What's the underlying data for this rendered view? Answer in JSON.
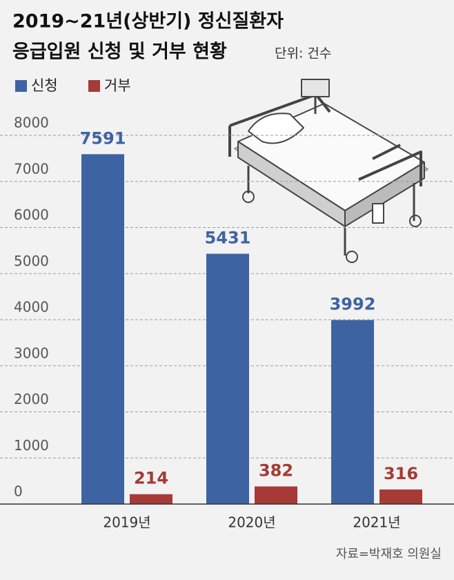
{
  "chart_data": {
    "type": "bar",
    "title": [
      "2019~21년(상반기) 정신질환자",
      "응급입원 신청 및 거부 현황"
    ],
    "subtitle": "단위: 건수",
    "categories": [
      "2019년",
      "2020년",
      "2021년"
    ],
    "series": [
      {
        "name": "신청",
        "color": "#3e63a3",
        "values": [
          7591,
          5431,
          3992
        ]
      },
      {
        "name": "거부",
        "color": "#a63a36",
        "values": [
          214,
          382,
          316
        ]
      }
    ],
    "ylim": [
      0,
      8000
    ],
    "yticks": [
      0,
      1000,
      2000,
      3000,
      4000,
      5000,
      6000,
      7000,
      8000
    ],
    "grid": true,
    "source": "자료=박재호 의원실"
  }
}
